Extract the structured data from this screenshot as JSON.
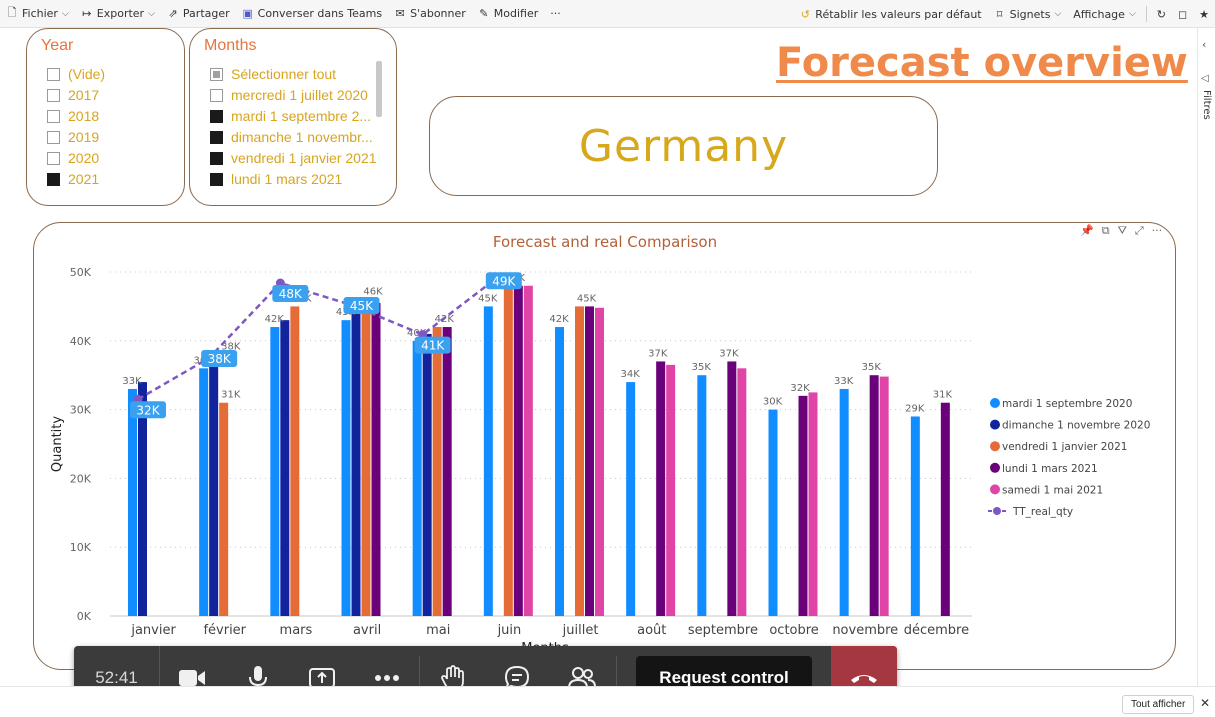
{
  "toolbar": {
    "items": [
      {
        "label": "Fichier",
        "icon": "file-icon",
        "chevron": true
      },
      {
        "label": "Exporter",
        "icon": "export-icon",
        "chevron": true
      },
      {
        "label": "Partager",
        "icon": "share-icon",
        "chevron": false
      },
      {
        "label": "Converser dans Teams",
        "icon": "teams-icon",
        "chevron": false
      },
      {
        "label": "S'abonner",
        "icon": "mail-icon",
        "chevron": false
      },
      {
        "label": "Modifier",
        "icon": "pencil-icon",
        "chevron": false
      },
      {
        "label": "···",
        "icon": "",
        "chevron": false
      }
    ],
    "right_items": [
      {
        "label": "Rétablir les valeurs par défaut",
        "icon": "reset-icon",
        "chevron": false
      },
      {
        "label": "Signets",
        "icon": "bookmark-icon",
        "chevron": true
      },
      {
        "label": "Affichage",
        "icon": "",
        "chevron": true
      }
    ],
    "refresh_icon": "↻",
    "comment_icon": "◻",
    "star_icon": "★"
  },
  "right_pane": {
    "label": "Filtres",
    "collapse_icon": "‹",
    "filter_icon": "◁"
  },
  "year_slicer": {
    "title": "Year",
    "items": [
      {
        "label": "(Vide)",
        "checked": false
      },
      {
        "label": "2017",
        "checked": false
      },
      {
        "label": "2018",
        "checked": false
      },
      {
        "label": "2019",
        "checked": false
      },
      {
        "label": "2020",
        "checked": false
      },
      {
        "label": "2021",
        "checked": true
      }
    ]
  },
  "months_slicer": {
    "title": "Months",
    "items": [
      {
        "label": "Sélectionner tout",
        "state": "partial"
      },
      {
        "label": "mercredi 1 juillet 2020",
        "state": "unchecked"
      },
      {
        "label": "mardi 1 septembre 2...",
        "state": "checked"
      },
      {
        "label": "dimanche 1 novembr...",
        "state": "checked"
      },
      {
        "label": "vendredi 1 janvier 2021",
        "state": "checked"
      },
      {
        "label": "lundi 1 mars 2021",
        "state": "checked"
      }
    ]
  },
  "page_title": "Forecast overview",
  "country": "Germany",
  "colors": {
    "accent_orange": "#e8743b",
    "title_orange": "#f08a4b",
    "gold": "#d7a81c",
    "border_brown": "#8b6a4e"
  },
  "chart_icons": [
    "📌",
    "⧉",
    "⛛",
    "⤢",
    "···"
  ],
  "chart_data": {
    "type": "bar",
    "title": "Forecast and real Comparison",
    "xlabel": "Months",
    "ylabel": "Quantity",
    "ylim": [
      0,
      50000
    ],
    "yticks": [
      "0K",
      "10K",
      "20K",
      "30K",
      "40K",
      "50K"
    ],
    "categories": [
      "janvier",
      "février",
      "mars",
      "avril",
      "mai",
      "juin",
      "juillet",
      "août",
      "septembre",
      "octobre",
      "novembre",
      "décembre"
    ],
    "series": [
      {
        "name": "mardi 1 septembre 2020",
        "color": "#118dff",
        "values": [
          33000,
          36000,
          42000,
          43000,
          40000,
          45000,
          42000,
          34000,
          35000,
          30000,
          33000,
          29000
        ]
      },
      {
        "name": "dimanche 1 novembre 2020",
        "color": "#12239e",
        "values": [
          34000,
          38000,
          43000,
          44000,
          41000,
          null,
          null,
          null,
          null,
          null,
          null,
          null
        ]
      },
      {
        "name": "vendredi 1 janvier 2021",
        "color": "#e66c37",
        "values": [
          null,
          31000,
          45000,
          46000,
          42000,
          48000,
          45000,
          null,
          null,
          null,
          null,
          null
        ]
      },
      {
        "name": "lundi 1 mars 2021",
        "color": "#6b007b",
        "values": [
          null,
          null,
          null,
          45500,
          42000,
          48000,
          45000,
          37000,
          37000,
          32000,
          35000,
          31000
        ]
      },
      {
        "name": "samedi 1 mai 2021",
        "color": "#e044a7",
        "values": [
          null,
          null,
          null,
          null,
          null,
          48000,
          44800,
          36500,
          36000,
          32500,
          34800,
          null
        ]
      }
    ],
    "line": {
      "name": "TT_real_qty",
      "color": "#7e57c2",
      "values": [
        31500,
        37500,
        48400,
        45200,
        40900,
        48800,
        null,
        null,
        null,
        null,
        null,
        null
      ]
    },
    "bar_labels": [
      "33K",
      "36K",
      "42K",
      "43K",
      "40K",
      "45K",
      "42K",
      "34K",
      "35K",
      "30K",
      "33K",
      "29K"
    ],
    "extra_labels": [
      {
        "text": "38K",
        "cat": 1,
        "value": 38000
      },
      {
        "text": "31K",
        "cat": 1,
        "value": 31000
      },
      {
        "text": "45K",
        "cat": 2,
        "value": 45000
      },
      {
        "text": "46K",
        "cat": 3,
        "value": 46000
      },
      {
        "text": "42K",
        "cat": 4,
        "value": 42000
      },
      {
        "text": "48K",
        "cat": 5,
        "value": 48000
      },
      {
        "text": "45K",
        "cat": 6,
        "value": 45000
      },
      {
        "text": "37K",
        "cat": 7,
        "value": 37000
      },
      {
        "text": "37K",
        "cat": 8,
        "value": 37000
      },
      {
        "text": "32K",
        "cat": 9,
        "value": 32000
      },
      {
        "text": "35K",
        "cat": 10,
        "value": 35000
      },
      {
        "text": "31K",
        "cat": 11,
        "value": 31000
      }
    ],
    "line_labels": [
      "32K",
      "38K",
      "48K",
      "45K",
      "41K",
      "49K"
    ],
    "legend_position": "right",
    "grid": true
  },
  "callbar": {
    "time": "52:41",
    "request_control": "Request control"
  },
  "bottombar": {
    "button": "Tout afficher",
    "close": "✕"
  }
}
